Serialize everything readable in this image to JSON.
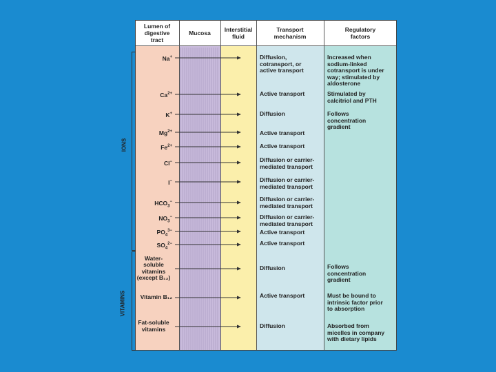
{
  "headers": {
    "lumen": "Lumen of\ndigestive\ntract",
    "mucosa": "Mucosa",
    "interstitial": "Interstitial\nfluid",
    "transport": "Transport\nmechanism",
    "regulatory": "Regulatory\nfactors"
  },
  "groups": {
    "ions": "IONS",
    "vitamins": "VITAMINS"
  },
  "rows": [
    {
      "base": "Na",
      "sup": "+",
      "sub": "",
      "transport": "Diffusion,\ncotransport, or\nactive transport",
      "regulatory": "Increased when\nsodium-linked\ncotransport is under\nway; stimulated by\naldosterone"
    },
    {
      "base": "Ca",
      "sup": "2+",
      "sub": "",
      "transport": "Active transport",
      "regulatory": "Stimulated by\ncalcitriol and PTH"
    },
    {
      "base": "K",
      "sup": "+",
      "sub": "",
      "transport": "Diffusion",
      "regulatory": "Follows\nconcentration\ngradient"
    },
    {
      "base": "Mg",
      "sup": "2+",
      "sub": "",
      "transport": "Active transport",
      "regulatory": ""
    },
    {
      "base": "Fe",
      "sup": "2+",
      "sub": "",
      "transport": "Active transport",
      "regulatory": ""
    },
    {
      "base": "Cl",
      "sup": "−",
      "sub": "",
      "transport": "Diffusion or carrier-\nmediated transport",
      "regulatory": ""
    },
    {
      "base": "I",
      "sup": "−",
      "sub": "",
      "transport": "Diffusion or carrier-\nmediated transport",
      "regulatory": ""
    },
    {
      "base": "HCO",
      "sup": "−",
      "sub": "3",
      "transport": "Diffusion or carrier-\nmediated transport",
      "regulatory": ""
    },
    {
      "base": "NO",
      "sup": "−",
      "sub": "3",
      "transport": "Diffusion or carrier-\nmediated transport",
      "regulatory": ""
    },
    {
      "base": "PO",
      "sup": "3−",
      "sub": "4",
      "transport": "Active transport",
      "regulatory": ""
    },
    {
      "base": "SO",
      "sup": "2−",
      "sub": "4",
      "transport": "Active transport",
      "regulatory": ""
    },
    {
      "base": "Water-\nsoluble\nvitamins\n(except B₁₂)",
      "sup": "",
      "sub": "",
      "transport": "Diffusion",
      "regulatory": "Follows\nconcentration\ngradient"
    },
    {
      "base": "Vitamin B₁₂",
      "sup": "",
      "sub": "",
      "transport": "Active transport",
      "regulatory": "Must be bound to\nintrinsic factor prior\nto absorption"
    },
    {
      "base": "Fat-soluble\nvitamins",
      "sup": "",
      "sub": "",
      "transport": "Diffusion",
      "regulatory": "Absorbed from\nmicelles in company\nwith dietary lipids"
    }
  ],
  "colors": {
    "background": "#1a8bd0",
    "lumen": "#f7d2bf",
    "mucosa": "#c9bbdc",
    "interstitial": "#fbefab",
    "transport": "#cfe6ec",
    "regulatory": "#b7e2df"
  }
}
